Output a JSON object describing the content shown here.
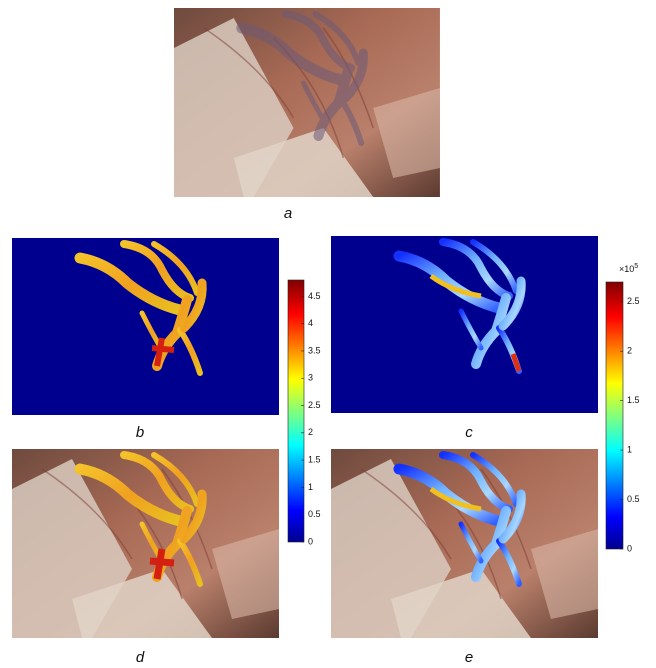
{
  "panels": [
    {
      "label": "a"
    },
    {
      "label": "b"
    },
    {
      "label": "c"
    },
    {
      "label": "d"
    },
    {
      "label": "e"
    }
  ],
  "colorbars": [
    {
      "lim": [
        0,
        4.8
      ],
      "ticks": [
        0,
        0.5,
        1,
        1.5,
        2,
        2.5,
        3,
        3.5,
        4,
        4.5
      ]
    },
    {
      "lim": [
        0,
        2.7
      ],
      "ticks": [
        0,
        0.5,
        1,
        1.5,
        2,
        2.5
      ],
      "multiplier": "×10",
      "exponent": "5"
    }
  ]
}
